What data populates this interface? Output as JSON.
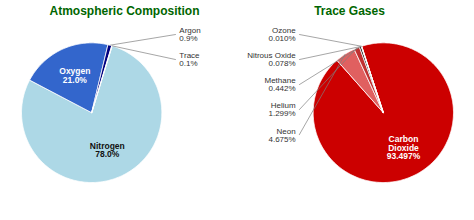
{
  "chart_data": [
    {
      "type": "pie",
      "title": "Atmospheric Composition",
      "categories": [
        "Nitrogen",
        "Oxygen",
        "Argon",
        "Trace"
      ],
      "values": [
        78.0,
        21.0,
        0.9,
        0.1
      ],
      "value_labels": [
        "78.0%",
        "21.0%",
        "0.9%",
        "0.1%"
      ],
      "colors": [
        "#add8e6",
        "#3366cc",
        "#000080",
        "#e8e8ff"
      ],
      "data_labels": true
    },
    {
      "type": "pie",
      "title": "Trace Gases",
      "categories": [
        "Carbon\nDioxide",
        "Neon",
        "Helium",
        "Methane",
        "Nitrous Oxide",
        "Ozone"
      ],
      "values": [
        93.497,
        4.675,
        1.299,
        0.442,
        0.078,
        0.01
      ],
      "value_labels": [
        "93.497%",
        "4.675%",
        "1.299%",
        "0.442%",
        "0.078%",
        "0.010%"
      ],
      "colors": [
        "#cc0000",
        "#e06060",
        "#c03030",
        "#1a1a1a",
        "#444444",
        "#dd8888"
      ],
      "data_labels": true
    }
  ]
}
